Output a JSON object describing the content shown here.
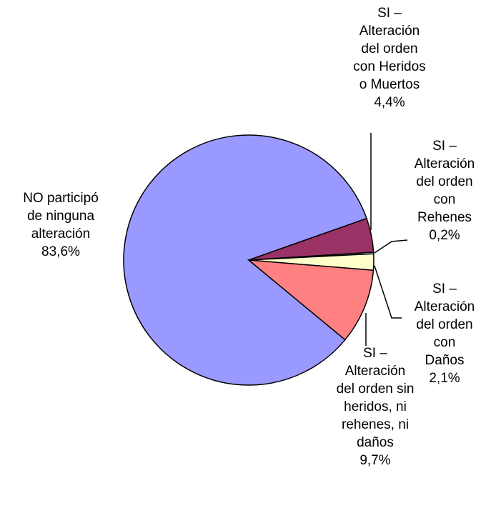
{
  "chart_data": {
    "type": "pie",
    "categories": [
      "NO participó\nde ninguna\nalteración",
      "SI –\nAlteración\ndel orden\ncon Heridos\no Muertos",
      "SI –\nAlteración\ndel orden\ncon\nRehenes",
      "SI –\nAlteración\ndel orden\ncon Daños",
      "SI –\nAlteración\ndel orden sin\nheridos, ni\nrehenes, ni\ndaños"
    ],
    "values": [
      83.6,
      4.4,
      0.2,
      2.1,
      9.7
    ],
    "value_labels": [
      "83,6%",
      "4,4%",
      "0,2%",
      "2,1%",
      "9,7%"
    ],
    "colors": [
      "#9999ff",
      "#993366",
      "#ccffff",
      "#ffffcc",
      "#ff8080"
    ]
  }
}
